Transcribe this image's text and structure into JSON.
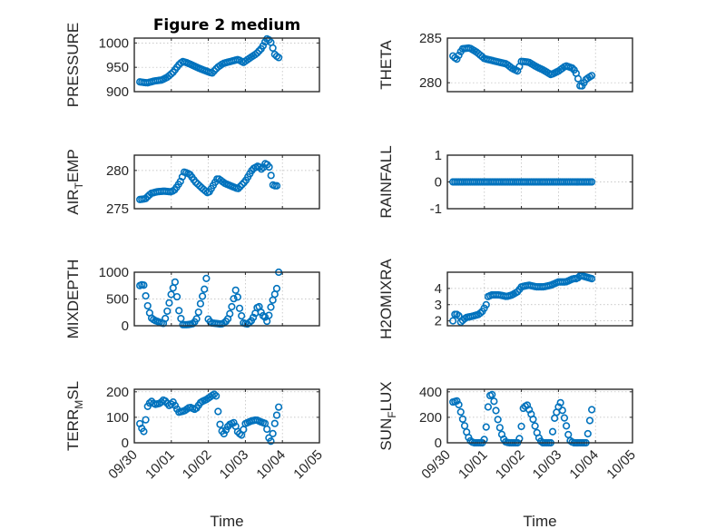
{
  "chart_data": [
    {
      "type": "scatter",
      "title": "Figure 2 medium",
      "ylabel": "PRESSURE",
      "ylim": [
        900,
        1010
      ],
      "yticks": [
        900,
        950,
        1000
      ],
      "xlim": [
        0,
        5
      ],
      "xticks": [
        0,
        1,
        2,
        3,
        4,
        5
      ],
      "xticklabels": [
        "09/30",
        "10/01",
        "10/02",
        "10/03",
        "10/04",
        "10/05"
      ],
      "xlabel": "",
      "knots": [
        [
          0.15,
          920
        ],
        [
          0.35,
          918
        ],
        [
          0.55,
          922
        ],
        [
          0.75,
          924
        ],
        [
          0.9,
          930
        ],
        [
          1.05,
          940
        ],
        [
          1.2,
          955
        ],
        [
          1.3,
          962
        ],
        [
          1.4,
          960
        ],
        [
          1.55,
          955
        ],
        [
          1.75,
          948
        ],
        [
          1.95,
          942
        ],
        [
          2.1,
          938
        ],
        [
          2.25,
          950
        ],
        [
          2.4,
          958
        ],
        [
          2.6,
          962
        ],
        [
          2.8,
          966
        ],
        [
          2.95,
          960
        ],
        [
          3.1,
          968
        ],
        [
          3.3,
          978
        ],
        [
          3.45,
          990
        ],
        [
          3.55,
          1005
        ],
        [
          3.6,
          1010
        ],
        [
          3.7,
          1000
        ],
        [
          3.8,
          975
        ],
        [
          3.9,
          970
        ]
      ]
    },
    {
      "type": "scatter",
      "title": "",
      "ylabel": "THETA",
      "ylim": [
        279,
        285
      ],
      "yticks": [
        280,
        285
      ],
      "xlim": [
        0,
        5
      ],
      "xticks": [
        0,
        1,
        2,
        3,
        4,
        5
      ],
      "xticklabels": [
        "09/30",
        "10/01",
        "10/02",
        "10/03",
        "10/04",
        "10/05"
      ],
      "xlabel": "",
      "knots": [
        [
          0.15,
          283
        ],
        [
          0.25,
          282.6
        ],
        [
          0.4,
          283.8
        ],
        [
          0.6,
          283.9
        ],
        [
          0.8,
          283.4
        ],
        [
          1.0,
          282.7
        ],
        [
          1.2,
          282.5
        ],
        [
          1.4,
          282.3
        ],
        [
          1.6,
          282.1
        ],
        [
          1.75,
          281.6
        ],
        [
          1.9,
          281.3
        ],
        [
          2.0,
          282.4
        ],
        [
          2.2,
          282.3
        ],
        [
          2.4,
          281.8
        ],
        [
          2.6,
          281.4
        ],
        [
          2.8,
          280.9
        ],
        [
          3.0,
          281.3
        ],
        [
          3.2,
          281.9
        ],
        [
          3.4,
          281.6
        ],
        [
          3.5,
          280.9
        ],
        [
          3.6,
          279.4
        ],
        [
          3.75,
          280.4
        ],
        [
          3.9,
          280.8
        ]
      ]
    },
    {
      "type": "scatter",
      "title": "",
      "ylabel": "AIR_TEMP",
      "ylim": [
        275,
        282
      ],
      "yticks": [
        275,
        280
      ],
      "xlim": [
        0,
        5
      ],
      "xticks": [
        0,
        1,
        2,
        3,
        4,
        5
      ],
      "xticklabels": [
        "09/30",
        "10/01",
        "10/02",
        "10/03",
        "10/04",
        "10/05"
      ],
      "xlabel": "",
      "knots": [
        [
          0.15,
          276.2
        ],
        [
          0.3,
          276.3
        ],
        [
          0.45,
          277
        ],
        [
          0.6,
          277.2
        ],
        [
          0.8,
          277.3
        ],
        [
          1.0,
          277.2
        ],
        [
          1.1,
          277.5
        ],
        [
          1.25,
          278.6
        ],
        [
          1.35,
          279.8
        ],
        [
          1.5,
          279.5
        ],
        [
          1.65,
          278.5
        ],
        [
          1.85,
          277.6
        ],
        [
          2.0,
          277
        ],
        [
          2.1,
          277.8
        ],
        [
          2.25,
          279
        ],
        [
          2.45,
          278.3
        ],
        [
          2.6,
          278
        ],
        [
          2.8,
          277.6
        ],
        [
          3.0,
          278.6
        ],
        [
          3.1,
          279.4
        ],
        [
          3.2,
          280.2
        ],
        [
          3.35,
          280.6
        ],
        [
          3.45,
          280.1
        ],
        [
          3.55,
          281
        ],
        [
          3.65,
          280.4
        ],
        [
          3.75,
          278
        ],
        [
          3.85,
          278
        ]
      ]
    },
    {
      "type": "scatter",
      "title": "",
      "ylabel": "RAINFALL",
      "ylim": [
        -1,
        1
      ],
      "yticks": [
        -1,
        0,
        1
      ],
      "xlim": [
        0,
        5
      ],
      "xticks": [
        0,
        1,
        2,
        3,
        4,
        5
      ],
      "xticklabels": [
        "09/30",
        "10/01",
        "10/02",
        "10/03",
        "10/04",
        "10/05"
      ],
      "xlabel": "",
      "knots": [
        [
          0.15,
          0
        ],
        [
          3.9,
          0
        ]
      ]
    },
    {
      "type": "scatter",
      "title": "",
      "ylabel": "MIXDEPTH",
      "ylim": [
        0,
        1000
      ],
      "yticks": [
        0,
        500,
        1000
      ],
      "xlim": [
        0,
        5
      ],
      "xticks": [
        0,
        1,
        2,
        3,
        4,
        5
      ],
      "xticklabels": [
        "09/30",
        "10/01",
        "10/02",
        "10/03",
        "10/04",
        "10/05"
      ],
      "xlabel": "",
      "knots": [
        [
          0.15,
          750
        ],
        [
          0.25,
          780
        ],
        [
          0.35,
          400
        ],
        [
          0.45,
          150
        ],
        [
          0.55,
          100
        ],
        [
          0.7,
          60
        ],
        [
          0.8,
          40
        ],
        [
          0.9,
          300
        ],
        [
          1.0,
          600
        ],
        [
          1.1,
          820
        ],
        [
          1.2,
          300
        ],
        [
          1.3,
          20
        ],
        [
          1.45,
          20
        ],
        [
          1.6,
          40
        ],
        [
          1.7,
          150
        ],
        [
          1.8,
          450
        ],
        [
          1.9,
          700
        ],
        [
          1.95,
          900
        ],
        [
          2.0,
          100
        ],
        [
          2.1,
          50
        ],
        [
          2.25,
          40
        ],
        [
          2.35,
          30
        ],
        [
          2.45,
          60
        ],
        [
          2.55,
          150
        ],
        [
          2.65,
          400
        ],
        [
          2.75,
          700
        ],
        [
          2.85,
          300
        ],
        [
          2.95,
          50
        ],
        [
          3.05,
          30
        ],
        [
          3.15,
          80
        ],
        [
          3.25,
          200
        ],
        [
          3.35,
          400
        ],
        [
          3.45,
          200
        ],
        [
          3.55,
          150
        ],
        [
          3.6,
          50
        ],
        [
          3.65,
          250
        ],
        [
          3.75,
          500
        ],
        [
          3.85,
          700
        ],
        [
          3.9,
          1000
        ]
      ]
    },
    {
      "type": "scatter",
      "title": "",
      "ylabel": "H2OMIXRA",
      "ylim": [
        1.7,
        5
      ],
      "yticks": [
        2,
        3,
        4
      ],
      "xlim": [
        0,
        5
      ],
      "xticks": [
        0,
        1,
        2,
        3,
        4,
        5
      ],
      "xticklabels": [
        "09/30",
        "10/01",
        "10/02",
        "10/03",
        "10/04",
        "10/05"
      ],
      "xlabel": "",
      "knots": [
        [
          0.15,
          2
        ],
        [
          0.2,
          2.4
        ],
        [
          0.3,
          2.4
        ],
        [
          0.35,
          1.9
        ],
        [
          0.5,
          2.2
        ],
        [
          0.7,
          2.3
        ],
        [
          0.85,
          2.4
        ],
        [
          0.95,
          2.6
        ],
        [
          1.05,
          3
        ],
        [
          1.1,
          3.5
        ],
        [
          1.2,
          3.6
        ],
        [
          1.4,
          3.6
        ],
        [
          1.6,
          3.5
        ],
        [
          1.75,
          3.6
        ],
        [
          1.9,
          3.8
        ],
        [
          2.0,
          4.1
        ],
        [
          2.2,
          4.2
        ],
        [
          2.4,
          4.1
        ],
        [
          2.6,
          4.1
        ],
        [
          2.8,
          4.2
        ],
        [
          3.0,
          4.4
        ],
        [
          3.2,
          4.4
        ],
        [
          3.4,
          4.6
        ],
        [
          3.5,
          4.6
        ],
        [
          3.6,
          4.8
        ],
        [
          3.75,
          4.7
        ],
        [
          3.9,
          4.6
        ]
      ]
    },
    {
      "type": "scatter",
      "title": "",
      "ylabel": "TERR_MSL",
      "ylim": [
        0,
        210
      ],
      "yticks": [
        0,
        100,
        200
      ],
      "xlim": [
        0,
        5
      ],
      "xticks": [
        0,
        1,
        2,
        3,
        4,
        5
      ],
      "xticklabels": [
        "09/30",
        "10/01",
        "10/02",
        "10/03",
        "10/04",
        "10/05"
      ],
      "xlabel": "Time",
      "knots": [
        [
          0.15,
          75
        ],
        [
          0.25,
          40
        ],
        [
          0.3,
          80
        ],
        [
          0.35,
          140
        ],
        [
          0.45,
          165
        ],
        [
          0.55,
          150
        ],
        [
          0.7,
          155
        ],
        [
          0.8,
          170
        ],
        [
          0.95,
          145
        ],
        [
          1.05,
          160
        ],
        [
          1.2,
          120
        ],
        [
          1.35,
          125
        ],
        [
          1.5,
          140
        ],
        [
          1.65,
          130
        ],
        [
          1.8,
          160
        ],
        [
          1.95,
          170
        ],
        [
          2.1,
          185
        ],
        [
          2.2,
          195
        ],
        [
          2.3,
          80
        ],
        [
          2.4,
          30
        ],
        [
          2.55,
          70
        ],
        [
          2.7,
          80
        ],
        [
          2.8,
          40
        ],
        [
          2.9,
          30
        ],
        [
          3.0,
          75
        ],
        [
          3.15,
          85
        ],
        [
          3.3,
          90
        ],
        [
          3.45,
          80
        ],
        [
          3.55,
          75
        ],
        [
          3.65,
          10
        ],
        [
          3.7,
          5
        ],
        [
          3.8,
          80
        ],
        [
          3.85,
          110
        ],
        [
          3.9,
          140
        ]
      ]
    },
    {
      "type": "scatter",
      "title": "",
      "ylabel": "SUN_FLUX",
      "ylim": [
        0,
        420
      ],
      "yticks": [
        0,
        200,
        400
      ],
      "xlim": [
        0,
        5
      ],
      "xticks": [
        0,
        1,
        2,
        3,
        4,
        5
      ],
      "xticklabels": [
        "09/30",
        "10/01",
        "10/02",
        "10/03",
        "10/04",
        "10/05"
      ],
      "xlabel": "Time",
      "knots": [
        [
          0.15,
          320
        ],
        [
          0.28,
          330
        ],
        [
          0.4,
          200
        ],
        [
          0.5,
          100
        ],
        [
          0.6,
          20
        ],
        [
          0.7,
          0
        ],
        [
          0.95,
          0
        ],
        [
          1.02,
          40
        ],
        [
          1.1,
          280
        ],
        [
          1.15,
          370
        ],
        [
          1.22,
          380
        ],
        [
          1.35,
          200
        ],
        [
          1.45,
          80
        ],
        [
          1.55,
          10
        ],
        [
          1.65,
          0
        ],
        [
          1.9,
          0
        ],
        [
          1.97,
          50
        ],
        [
          2.05,
          270
        ],
        [
          2.15,
          300
        ],
        [
          2.3,
          200
        ],
        [
          2.45,
          50
        ],
        [
          2.55,
          0
        ],
        [
          2.8,
          0
        ],
        [
          2.9,
          200
        ],
        [
          3.0,
          280
        ],
        [
          3.05,
          320
        ],
        [
          3.2,
          150
        ],
        [
          3.3,
          20
        ],
        [
          3.4,
          0
        ],
        [
          3.75,
          0
        ],
        [
          3.8,
          80
        ],
        [
          3.85,
          180
        ],
        [
          3.9,
          260
        ]
      ]
    }
  ]
}
